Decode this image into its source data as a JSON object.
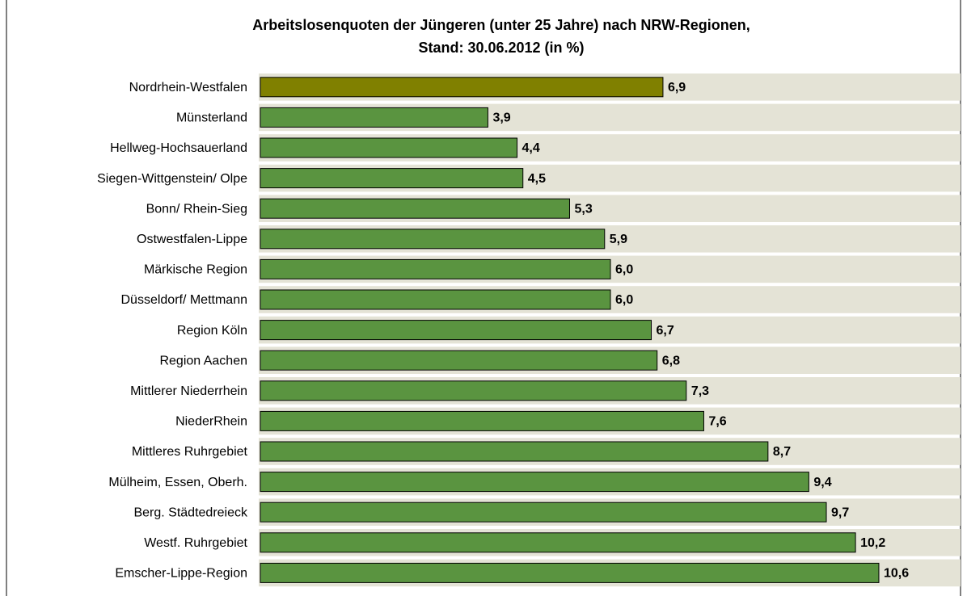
{
  "chart_data": {
    "type": "bar",
    "orientation": "horizontal",
    "title": [
      "Arbeitslosenquoten der Jüngeren (unter 25 Jahre) nach NRW-Regionen,",
      "Stand: 30.06.2012 (in %)"
    ],
    "categories": [
      "Nordrhein-Westfalen",
      "Münsterland",
      "Hellweg-Hochsauerland",
      "Siegen-Wittgenstein/ Olpe",
      "Bonn/ Rhein-Sieg",
      "Ostwestfalen-Lippe",
      "Märkische Region",
      "Düsseldorf/ Mettmann",
      "Region Köln",
      "Region Aachen",
      "Mittlerer Niederrhein",
      "NiederRhein",
      "Mittleres Ruhrgebiet",
      "Mülheim, Essen, Oberh.",
      "Berg. Städtedreieck",
      "Westf. Ruhrgebiet",
      "Emscher-Lippe-Region"
    ],
    "values": [
      6.9,
      3.9,
      4.4,
      4.5,
      5.3,
      5.9,
      6.0,
      6.0,
      6.7,
      6.8,
      7.3,
      7.6,
      8.7,
      9.4,
      9.7,
      10.2,
      10.6
    ],
    "value_labels": [
      "6,9",
      "3,9",
      "4,4",
      "4,5",
      "5,3",
      "5,9",
      "6,0",
      "6,0",
      "6,7",
      "6,8",
      "7,3",
      "7,6",
      "8,7",
      "9,4",
      "9,7",
      "10,2",
      "10,6"
    ],
    "colors": [
      "#808000",
      "#5a9440",
      "#5a9440",
      "#5a9440",
      "#5a9440",
      "#5a9440",
      "#5a9440",
      "#5a9440",
      "#5a9440",
      "#5a9440",
      "#5a9440",
      "#5a9440",
      "#5a9440",
      "#5a9440",
      "#5a9440",
      "#5a9440",
      "#5a9440"
    ],
    "xlim": [
      0,
      12
    ]
  }
}
